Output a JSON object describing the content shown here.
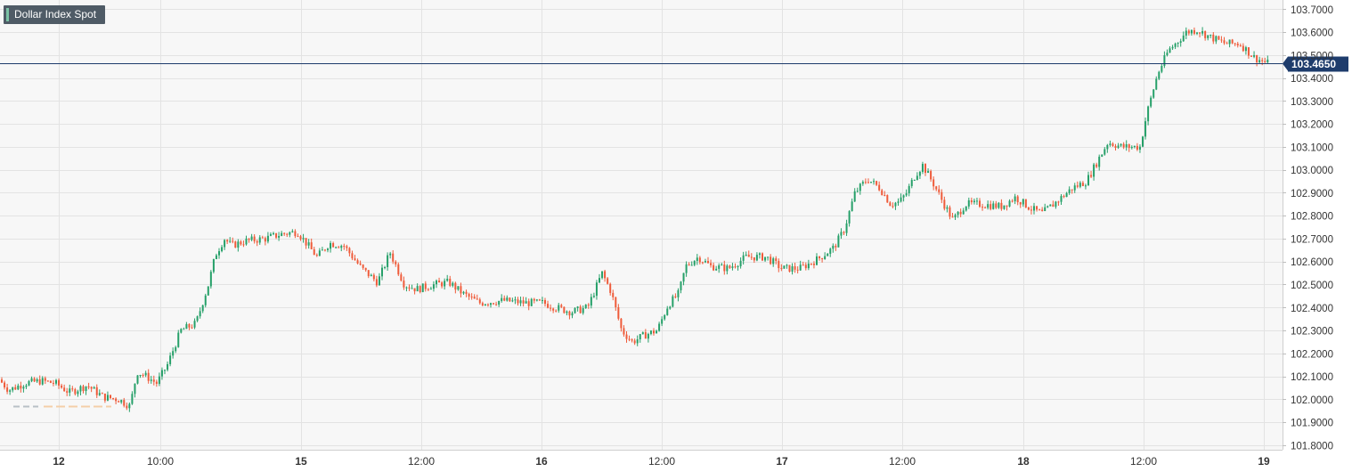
{
  "chart_data": {
    "type": "candlestick",
    "title": "Dollar Index Spot",
    "current_price_label": "103.4650",
    "current_price": 103.465,
    "y_axis": {
      "ylim": [
        101.78,
        103.74
      ],
      "ticks": [
        101.8,
        101.9,
        102.0,
        102.1,
        102.2,
        102.3,
        102.4,
        102.5,
        102.6,
        102.7,
        102.8,
        102.9,
        103.0,
        103.1,
        103.2,
        103.3,
        103.4,
        103.5,
        103.6,
        103.7
      ],
      "tick_labels": [
        "101.8000",
        "101.9000",
        "102.0000",
        "102.1000",
        "102.2000",
        "102.3000",
        "102.4000",
        "102.5000",
        "102.6000",
        "102.7000",
        "102.8000",
        "102.9000",
        "103.0000",
        "103.1000",
        "103.2000",
        "103.3000",
        "103.4000",
        "103.5000",
        "103.6000",
        "103.7000"
      ],
      "position": "right"
    },
    "x_axis": {
      "range": [
        0,
        1440
      ],
      "ticks": [
        {
          "x": 66,
          "label": "12",
          "bold": true
        },
        {
          "x": 180,
          "label": "10:00",
          "bold": false
        },
        {
          "x": 338,
          "label": "15",
          "bold": true
        },
        {
          "x": 473,
          "label": "12:00",
          "bold": false
        },
        {
          "x": 608,
          "label": "16",
          "bold": true
        },
        {
          "x": 743,
          "label": "12:00",
          "bold": false
        },
        {
          "x": 878,
          "label": "17",
          "bold": true
        },
        {
          "x": 1013,
          "label": "12:00",
          "bold": false
        },
        {
          "x": 1149,
          "label": "18",
          "bold": true
        },
        {
          "x": 1284,
          "label": "12:00",
          "bold": false
        },
        {
          "x": 1419,
          "label": "19",
          "bold": true
        }
      ]
    },
    "vertical_grid": [
      66,
      180,
      338,
      473,
      608,
      743,
      878,
      1013,
      1149,
      1284,
      1419
    ],
    "grid": true,
    "colors": {
      "up": "#26a069",
      "down": "#ef5b3a",
      "price_line": "#1e3c6c",
      "price_tag": "#1e3c6c",
      "grid": "#e3e3e3",
      "plot_bg": "#f7f7f7",
      "axis_text": "#333333",
      "badge_bg": "#4f5b66",
      "ghost_line": "#f4cfa8"
    },
    "ghost_segment": {
      "x": [
        15,
        125
      ],
      "y": 101.97
    },
    "anchors": [
      [
        0,
        102.09
      ],
      [
        12,
        102.04
      ],
      [
        30,
        102.07
      ],
      [
        48,
        102.08
      ],
      [
        64,
        102.07
      ],
      [
        80,
        102.03
      ],
      [
        100,
        102.06
      ],
      [
        118,
        102.01
      ],
      [
        135,
        102.0
      ],
      [
        148,
        101.97
      ],
      [
        156,
        102.12
      ],
      [
        166,
        102.1
      ],
      [
        178,
        102.07
      ],
      [
        190,
        102.15
      ],
      [
        205,
        102.3
      ],
      [
        222,
        102.33
      ],
      [
        236,
        102.5
      ],
      [
        244,
        102.63
      ],
      [
        254,
        102.7
      ],
      [
        262,
        102.67
      ],
      [
        278,
        102.69
      ],
      [
        300,
        102.7
      ],
      [
        318,
        102.72
      ],
      [
        336,
        102.73
      ],
      [
        346,
        102.68
      ],
      [
        358,
        102.62
      ],
      [
        372,
        102.68
      ],
      [
        388,
        102.67
      ],
      [
        408,
        102.57
      ],
      [
        426,
        102.51
      ],
      [
        440,
        102.64
      ],
      [
        456,
        102.5
      ],
      [
        470,
        102.48
      ],
      [
        490,
        102.5
      ],
      [
        506,
        102.51
      ],
      [
        522,
        102.46
      ],
      [
        540,
        102.42
      ],
      [
        568,
        102.43
      ],
      [
        592,
        102.42
      ],
      [
        612,
        102.42
      ],
      [
        626,
        102.4
      ],
      [
        644,
        102.38
      ],
      [
        662,
        102.4
      ],
      [
        678,
        102.55
      ],
      [
        688,
        102.47
      ],
      [
        700,
        102.3
      ],
      [
        712,
        102.25
      ],
      [
        726,
        102.28
      ],
      [
        740,
        102.3
      ],
      [
        752,
        102.41
      ],
      [
        764,
        102.46
      ],
      [
        772,
        102.58
      ],
      [
        786,
        102.62
      ],
      [
        800,
        102.58
      ],
      [
        820,
        102.57
      ],
      [
        840,
        102.62
      ],
      [
        862,
        102.62
      ],
      [
        880,
        102.57
      ],
      [
        900,
        102.57
      ],
      [
        920,
        102.61
      ],
      [
        938,
        102.66
      ],
      [
        950,
        102.74
      ],
      [
        962,
        102.9
      ],
      [
        976,
        102.96
      ],
      [
        990,
        102.92
      ],
      [
        1002,
        102.85
      ],
      [
        1012,
        102.86
      ],
      [
        1020,
        102.9
      ],
      [
        1030,
        102.98
      ],
      [
        1038,
        103.02
      ],
      [
        1050,
        102.94
      ],
      [
        1062,
        102.85
      ],
      [
        1072,
        102.78
      ],
      [
        1086,
        102.85
      ],
      [
        1104,
        102.85
      ],
      [
        1126,
        102.84
      ],
      [
        1142,
        102.88
      ],
      [
        1160,
        102.83
      ],
      [
        1172,
        102.81
      ],
      [
        1188,
        102.86
      ],
      [
        1206,
        102.92
      ],
      [
        1222,
        102.95
      ],
      [
        1236,
        103.05
      ],
      [
        1246,
        103.12
      ],
      [
        1262,
        103.1
      ],
      [
        1282,
        103.1
      ],
      [
        1290,
        103.25
      ],
      [
        1302,
        103.42
      ],
      [
        1314,
        103.52
      ],
      [
        1322,
        103.55
      ],
      [
        1334,
        103.6
      ],
      [
        1346,
        103.61
      ],
      [
        1360,
        103.58
      ],
      [
        1378,
        103.55
      ],
      [
        1394,
        103.55
      ],
      [
        1410,
        103.49
      ],
      [
        1424,
        103.465
      ]
    ]
  }
}
